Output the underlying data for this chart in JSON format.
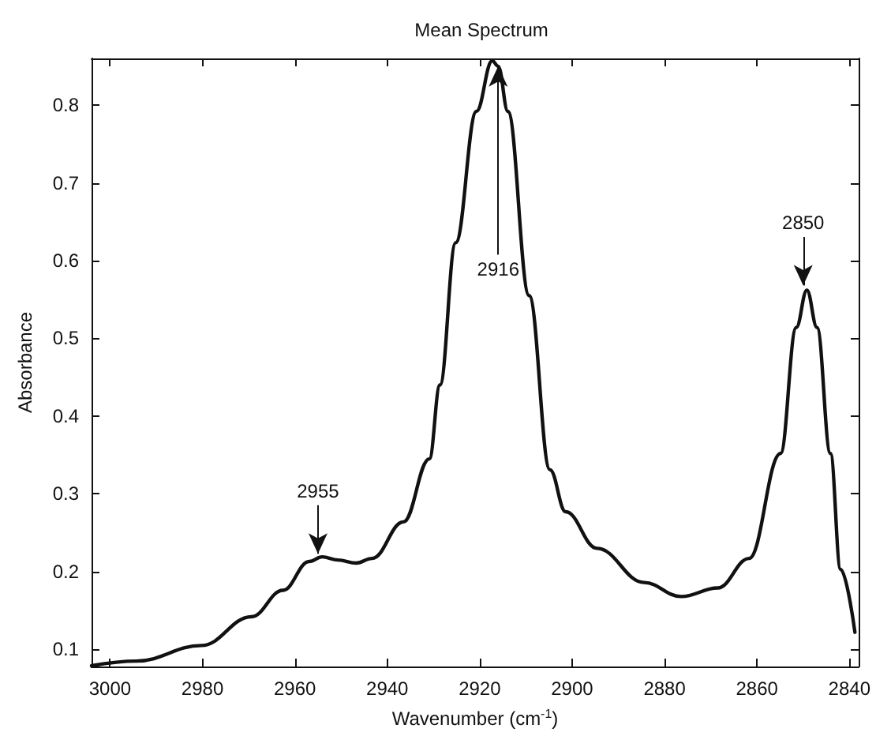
{
  "chart_data": {
    "type": "line",
    "title": "Mean Spectrum",
    "xlabel": "Wavenumber (cm$^{-1}$)",
    "ylabel": "Absorbance",
    "x": [
      3004,
      2994.3,
      2980.2,
      2969.4,
      2962.6,
      2956.9,
      2954.1,
      2950.7,
      2946.7,
      2943.3,
      2936.5,
      2930.9,
      2928.6,
      2925.2,
      2920.7,
      2917.3,
      2916,
      2913.9,
      2909.3,
      2904.8,
      2901.4,
      2894.6,
      2884.4,
      2876.4,
      2868.5,
      2861.7,
      2854.9,
      2851.5,
      2849.2,
      2847,
      2844.1,
      2841.9,
      2838.8
    ],
    "series": [
      {
        "color": "#111111",
        "values": [
          0.079,
          0.085,
          0.105,
          0.142,
          0.176,
          0.213,
          0.219,
          0.215,
          0.211,
          0.217,
          0.264,
          0.345,
          0.44,
          0.623,
          0.792,
          0.857,
          0.85,
          0.792,
          0.555,
          0.331,
          0.277,
          0.23,
          0.186,
          0.168,
          0.179,
          0.217,
          0.352,
          0.514,
          0.562,
          0.514,
          0.352,
          0.203,
          0.122
        ]
      }
    ],
    "xlim": [
      3004,
      2838
    ],
    "xticks": [
      3000,
      2980,
      2960,
      2940,
      2920,
      2900,
      2880,
      2860,
      2840
    ],
    "ylim": [
      0.078,
      0.86
    ],
    "yticks": [
      0.1,
      0.2,
      0.3,
      0.4,
      0.5,
      0.6,
      0.7,
      0.8
    ],
    "annotations": [
      {
        "text": "2955",
        "x": 2955,
        "y": 0.223
      },
      {
        "text": "2916",
        "x": 2916,
        "y": 0.85
      },
      {
        "text": "2850",
        "x": 2850,
        "y": 0.568
      }
    ],
    "grid": false,
    "marker": "none",
    "line_style": "solid"
  }
}
